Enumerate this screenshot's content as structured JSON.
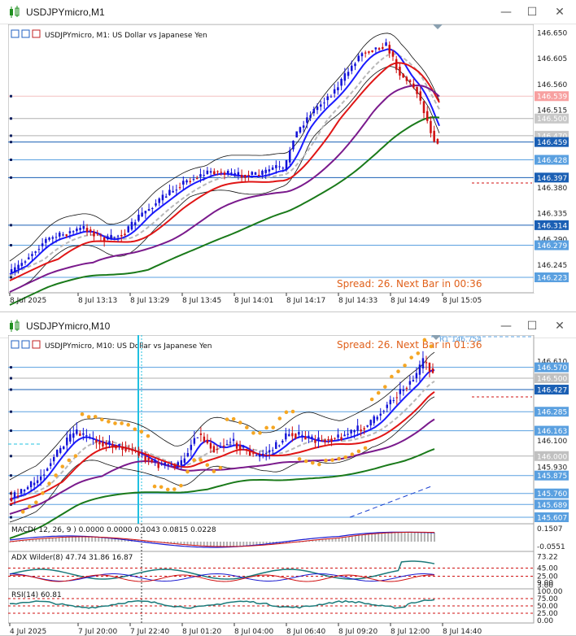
{
  "window1": {
    "title": "USDJPYmicro,M1",
    "chart_label": "USDJPYmicro, M1:  US Dollar vs Japanese Yen",
    "info_text": "Spread: 26. Next Bar in 00:36",
    "price_labels": [
      "146.650",
      "146.605",
      "146.560",
      "146.539",
      "146.515",
      "146.500",
      "146.470",
      "146.459",
      "146.428",
      "146.397",
      "146.380",
      "146.335",
      "146.314",
      "146.290",
      "146.279",
      "146.245",
      "146.223"
    ],
    "time_labels": [
      "8 Jul 2025",
      "8 Jul 13:13",
      "8 Jul 13:29",
      "8 Jul 13:45",
      "8 Jul 14:01",
      "8 Jul 14:17",
      "8 Jul 14:33",
      "8 Jul 14:49",
      "8 Jul 15:05"
    ]
  },
  "window2": {
    "title": "USDJPYmicro,M10",
    "chart_label": "USDJPYmicro, M10:  US Dollar vs Japanese Yen",
    "info_text": "Spread: 26. Next Bar in 01:36",
    "r1_label": "R1 146.754",
    "price_labels": [
      "146.610",
      "146.570",
      "146.500",
      "146.427",
      "146.285",
      "146.163",
      "146.100",
      "146.000",
      "145.930",
      "145.875",
      "145.760",
      "145.689",
      "145.607"
    ],
    "time_labels": [
      "4 Jul 2025",
      "7 Jul 20:00",
      "7 Jul 22:40",
      "8 Jul 01:20",
      "8 Jul 04:00",
      "8 Jul 06:40",
      "8 Jul 09:20",
      "8 Jul 12:00",
      "8 Jul 14:40"
    ],
    "macd_label": "MACD( 12, 26, 9 ) 0.0000 0.0000 0.1043 0.0815 0.0228",
    "macd_scale": [
      "0.1507",
      "-0.0551"
    ],
    "adx_label": "ADX Wilder(8) 47.74 31.86 16.87",
    "adx_scale": [
      "73.22",
      "45.00",
      "25.00",
      "9.00",
      "3.00"
    ],
    "rsi_label": "RSI(14) 60.81",
    "rsi_scale": [
      "100.00",
      "75.00",
      "50.00",
      "25.00",
      "0.00"
    ]
  },
  "colors": {
    "bull": "#1212d8",
    "bear": "#d01010",
    "ma_fast": "#1a1aff",
    "ma_red": "#e01515",
    "ma_silver": "#b8b8b8",
    "ma_purple": "#7a1a8c",
    "ma_green": "#1a7a1a",
    "spread_text": "#e0601a",
    "level_line": "#1a5fb4",
    "price_tag": "#5aa0e0",
    "sar": "#f5a623"
  }
}
